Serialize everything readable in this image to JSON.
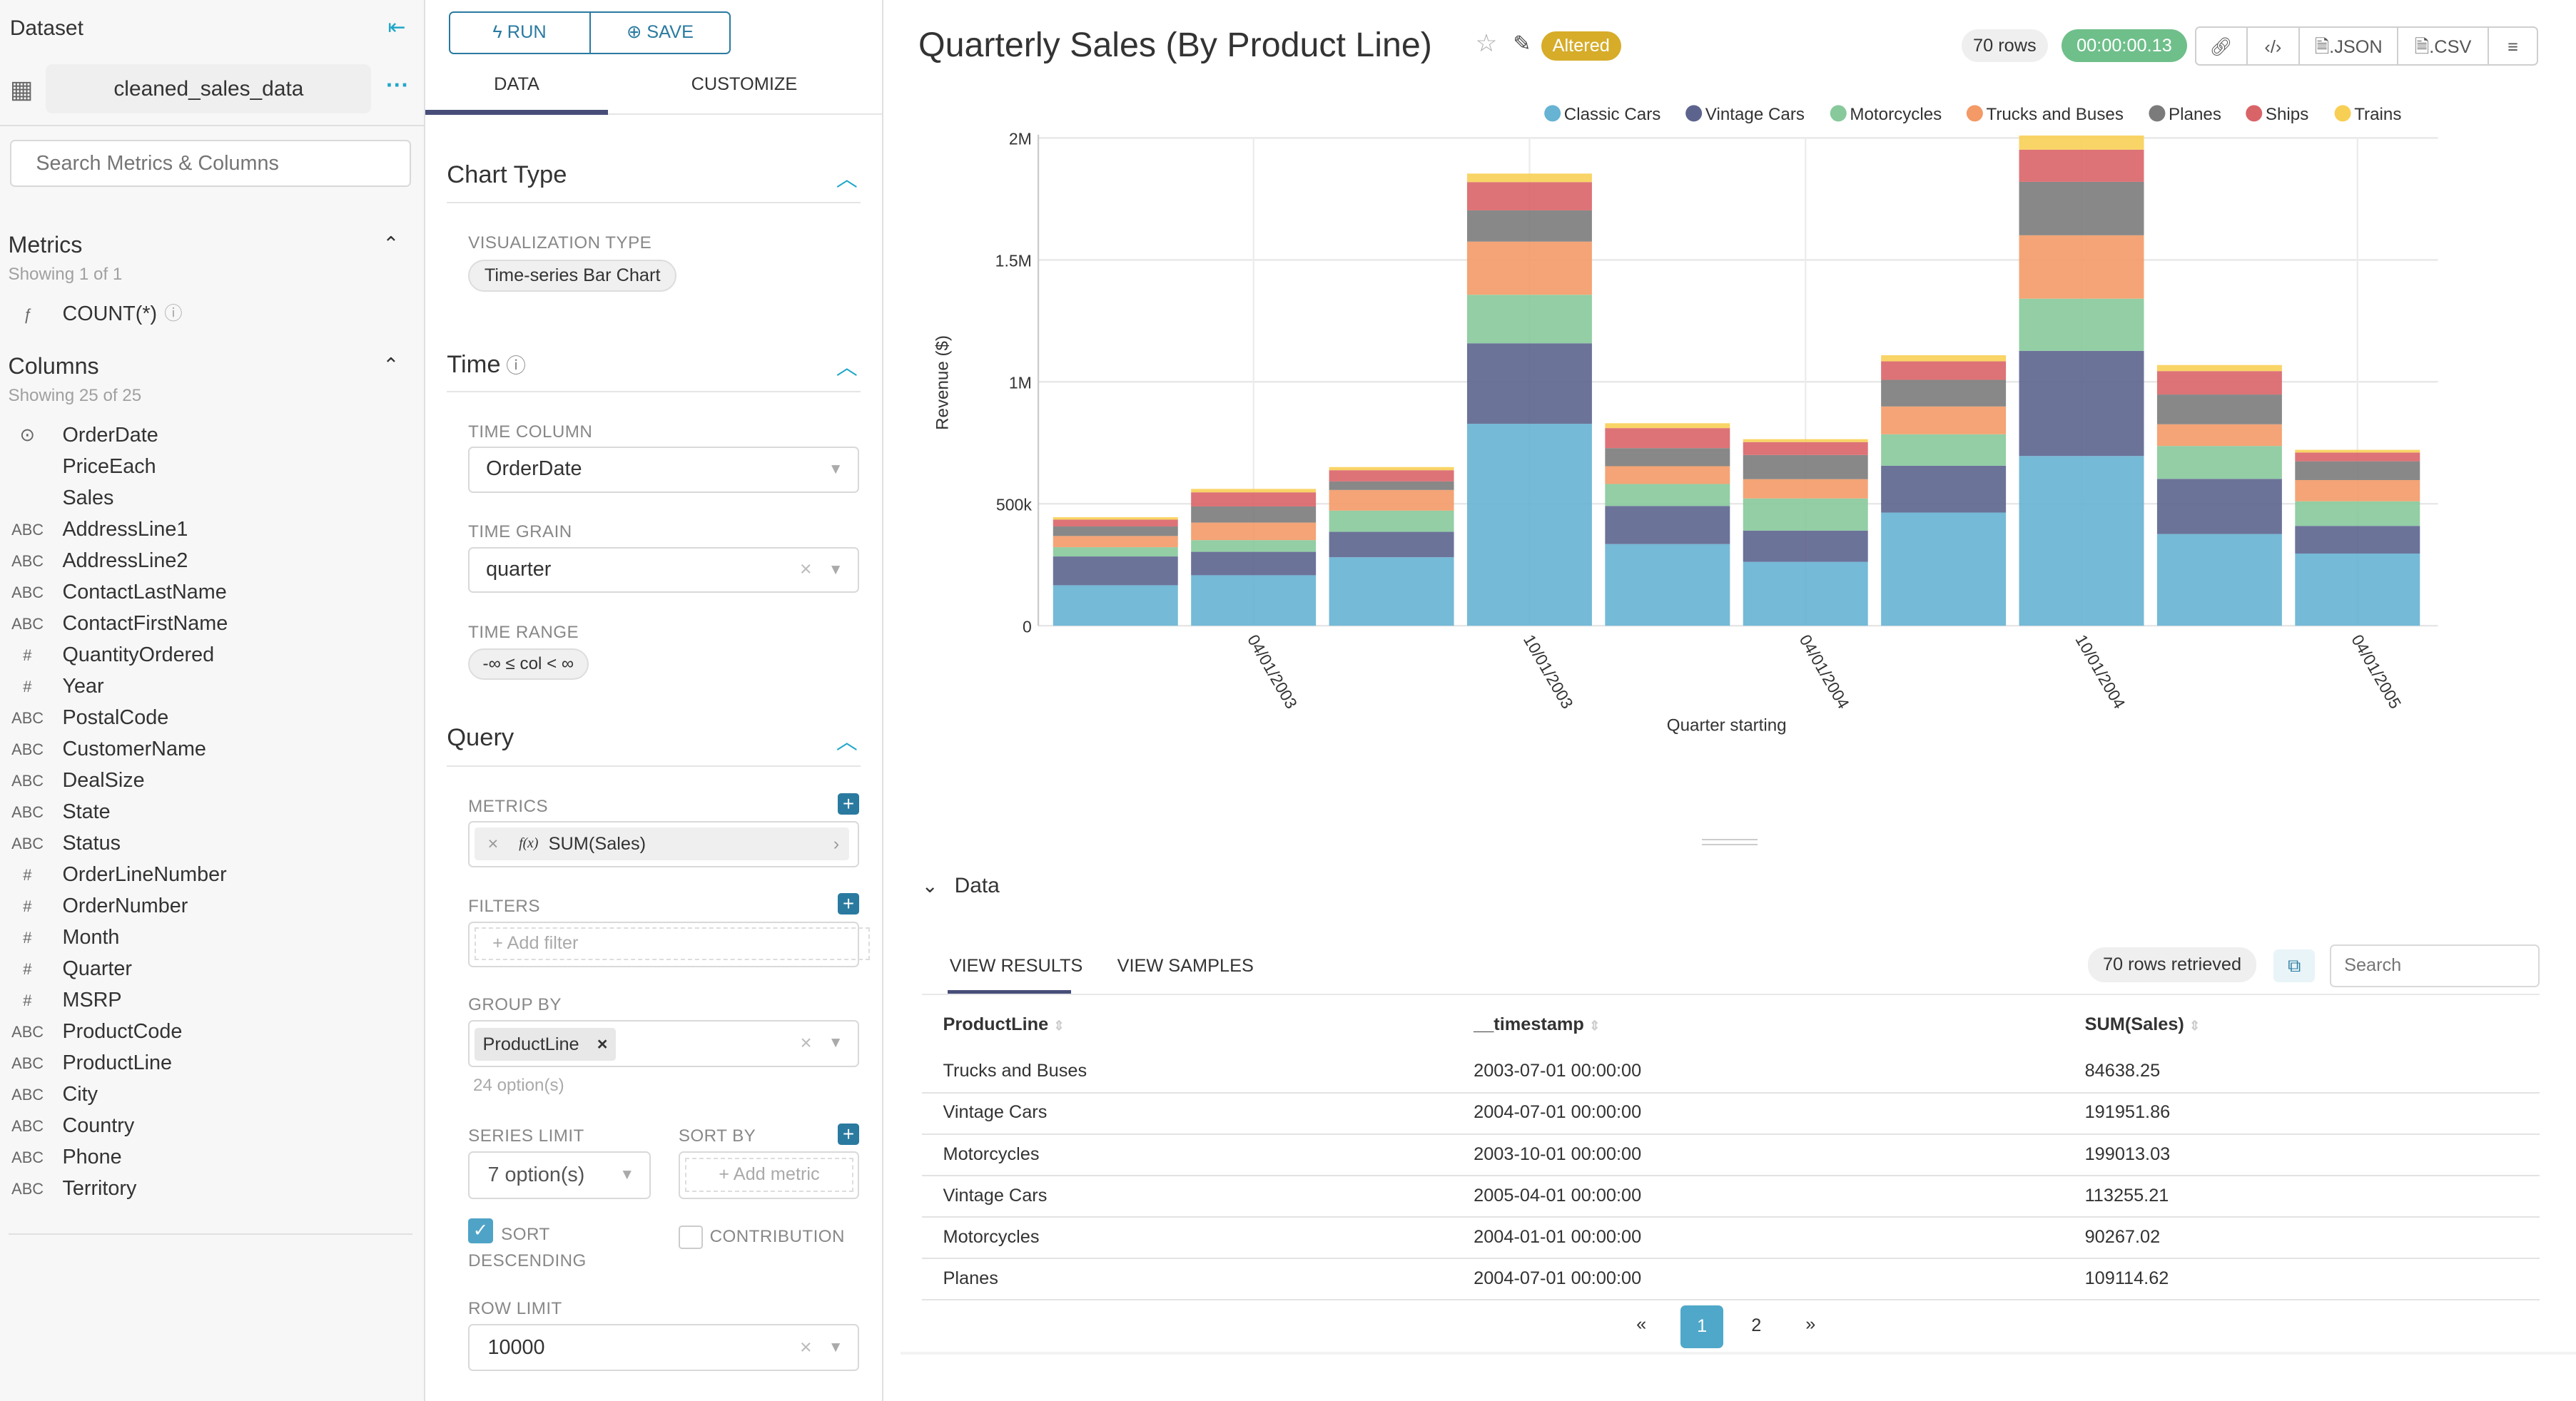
{
  "sidebar": {
    "title": "Dataset",
    "dataset_name": "cleaned_sales_data",
    "search_placeholder": "Search Metrics & Columns",
    "metrics": {
      "title": "Metrics",
      "showing": "Showing 1 of 1",
      "items": [
        {
          "type": "ƒ",
          "name": "COUNT(*)"
        }
      ]
    },
    "columns": {
      "title": "Columns",
      "showing": "Showing 25 of 25",
      "items": [
        {
          "type": "clock",
          "name": "OrderDate"
        },
        {
          "type": "",
          "name": "PriceEach"
        },
        {
          "type": "",
          "name": "Sales"
        },
        {
          "type": "ABC",
          "name": "AddressLine1"
        },
        {
          "type": "ABC",
          "name": "AddressLine2"
        },
        {
          "type": "ABC",
          "name": "ContactLastName"
        },
        {
          "type": "ABC",
          "name": "ContactFirstName"
        },
        {
          "type": "#",
          "name": "QuantityOrdered"
        },
        {
          "type": "#",
          "name": "Year"
        },
        {
          "type": "ABC",
          "name": "PostalCode"
        },
        {
          "type": "ABC",
          "name": "CustomerName"
        },
        {
          "type": "ABC",
          "name": "DealSize"
        },
        {
          "type": "ABC",
          "name": "State"
        },
        {
          "type": "ABC",
          "name": "Status"
        },
        {
          "type": "#",
          "name": "OrderLineNumber"
        },
        {
          "type": "#",
          "name": "OrderNumber"
        },
        {
          "type": "#",
          "name": "Month"
        },
        {
          "type": "#",
          "name": "Quarter"
        },
        {
          "type": "#",
          "name": "MSRP"
        },
        {
          "type": "ABC",
          "name": "ProductCode"
        },
        {
          "type": "ABC",
          "name": "ProductLine"
        },
        {
          "type": "ABC",
          "name": "City"
        },
        {
          "type": "ABC",
          "name": "Country"
        },
        {
          "type": "ABC",
          "name": "Phone"
        },
        {
          "type": "ABC",
          "name": "Territory"
        }
      ]
    }
  },
  "controls": {
    "run_label": "RUN",
    "save_label": "SAVE",
    "tabs": [
      "DATA",
      "CUSTOMIZE"
    ],
    "chart_type": {
      "title": "Chart Type",
      "viz_label": "VISUALIZATION TYPE",
      "viz_value": "Time-series Bar Chart"
    },
    "time": {
      "title": "Time",
      "column_label": "TIME COLUMN",
      "column_value": "OrderDate",
      "grain_label": "TIME GRAIN",
      "grain_value": "quarter",
      "range_label": "TIME RANGE",
      "range_value": "-∞ ≤ col < ∞"
    },
    "query": {
      "title": "Query",
      "metrics_label": "METRICS",
      "metric_value": "SUM(Sales)",
      "metric_fx": "f(x)",
      "filters_label": "FILTERS",
      "add_filter": "Add filter",
      "groupby_label": "GROUP BY",
      "groupby_value": "ProductLine",
      "groupby_options": "24 option(s)",
      "series_limit_label": "SERIES LIMIT",
      "series_limit_value": "7 option(s)",
      "sort_by_label": "SORT BY",
      "add_metric": "Add metric",
      "sort_desc_label": "SORT DESCENDING",
      "sort_desc_checked": true,
      "contribution_label": "CONTRIBUTION",
      "contribution_checked": false,
      "row_limit_label": "ROW LIMIT",
      "row_limit_value": "10000"
    }
  },
  "header": {
    "title": "Quarterly Sales (By Product Line)",
    "altered": "Altered",
    "rows": "70 rows",
    "duration": "00:00:00.13",
    "json": ".JSON",
    "csv": ".CSV"
  },
  "chart_data": {
    "type": "bar",
    "stacked": true,
    "categories": [
      "2003-01-01",
      "2003-04-01",
      "2003-07-01",
      "2003-10-01",
      "2004-01-01",
      "2004-04-01",
      "2004-07-01",
      "2004-10-01",
      "2005-01-01",
      "2005-04-01"
    ],
    "x_tick_labels": [
      {
        "category": "2003-04-01",
        "label": "04/01/2003"
      },
      {
        "category": "2003-10-01",
        "label": "10/01/2003"
      },
      {
        "category": "2004-04-01",
        "label": "04/01/2004"
      },
      {
        "category": "2004-10-01",
        "label": "10/01/2004"
      },
      {
        "category": "2005-04-01",
        "label": "04/01/2005"
      }
    ],
    "xlabel": "Quarter starting",
    "ylabel": "Revenue ($)",
    "ylim": [
      0,
      2000000
    ],
    "y_ticks": [
      {
        "v": 0,
        "label": "0"
      },
      {
        "v": 500000,
        "label": "500k"
      },
      {
        "v": 1000000,
        "label": "1M"
      },
      {
        "v": 1500000,
        "label": "1.5M"
      },
      {
        "v": 2000000,
        "label": "2M"
      }
    ],
    "grid": true,
    "legend": "top-right",
    "series": [
      {
        "name": "Classic Cars",
        "color": "#66b3d3",
        "values": [
          166000,
          207000,
          281000,
          828000,
          335000,
          262000,
          464000,
          696000,
          376000,
          296000
        ]
      },
      {
        "name": "Vintage Cars",
        "color": "#5c648e",
        "values": [
          118000,
          96000,
          104000,
          330000,
          156000,
          128000,
          191952,
          431000,
          226000,
          113255
        ]
      },
      {
        "name": "Motorcycles",
        "color": "#87c99b",
        "values": [
          38000,
          48000,
          87000,
          199013,
          90267,
          132000,
          129000,
          214000,
          135000,
          101000
        ]
      },
      {
        "name": "Trucks and Buses",
        "color": "#f39a67",
        "values": [
          46000,
          72000,
          84638,
          218000,
          73000,
          79000,
          114000,
          260000,
          89000,
          87000
        ]
      },
      {
        "name": "Planes",
        "color": "#7b7b7b",
        "values": [
          39000,
          66000,
          35000,
          128000,
          74000,
          99000,
          109115,
          219000,
          122000,
          77000
        ]
      },
      {
        "name": "Ships",
        "color": "#d96468",
        "values": [
          28000,
          58000,
          46000,
          116000,
          82000,
          53000,
          76000,
          132000,
          96000,
          36000
        ]
      },
      {
        "name": "Trains",
        "color": "#f8cf55",
        "values": [
          10000,
          14000,
          13000,
          35000,
          20000,
          12000,
          25000,
          58000,
          25000,
          11000
        ]
      }
    ]
  },
  "data_panel": {
    "title": "Data",
    "tabs": [
      "VIEW RESULTS",
      "VIEW SAMPLES"
    ],
    "rows_retrieved": "70 rows retrieved",
    "search_placeholder": "Search",
    "columns": [
      "ProductLine",
      "__timestamp",
      "SUM(Sales)"
    ],
    "rows": [
      [
        "Trucks and Buses",
        "2003-07-01 00:00:00",
        "84638.25"
      ],
      [
        "Vintage Cars",
        "2004-07-01 00:00:00",
        "191951.86"
      ],
      [
        "Motorcycles",
        "2003-10-01 00:00:00",
        "199013.03"
      ],
      [
        "Vintage Cars",
        "2005-04-01 00:00:00",
        "113255.21"
      ],
      [
        "Motorcycles",
        "2004-01-01 00:00:00",
        "90267.02"
      ],
      [
        "Planes",
        "2004-07-01 00:00:00",
        "109114.62"
      ]
    ],
    "pagination": {
      "prev": "«",
      "pages": [
        "1",
        "2"
      ],
      "current": "1",
      "next": "»"
    }
  }
}
